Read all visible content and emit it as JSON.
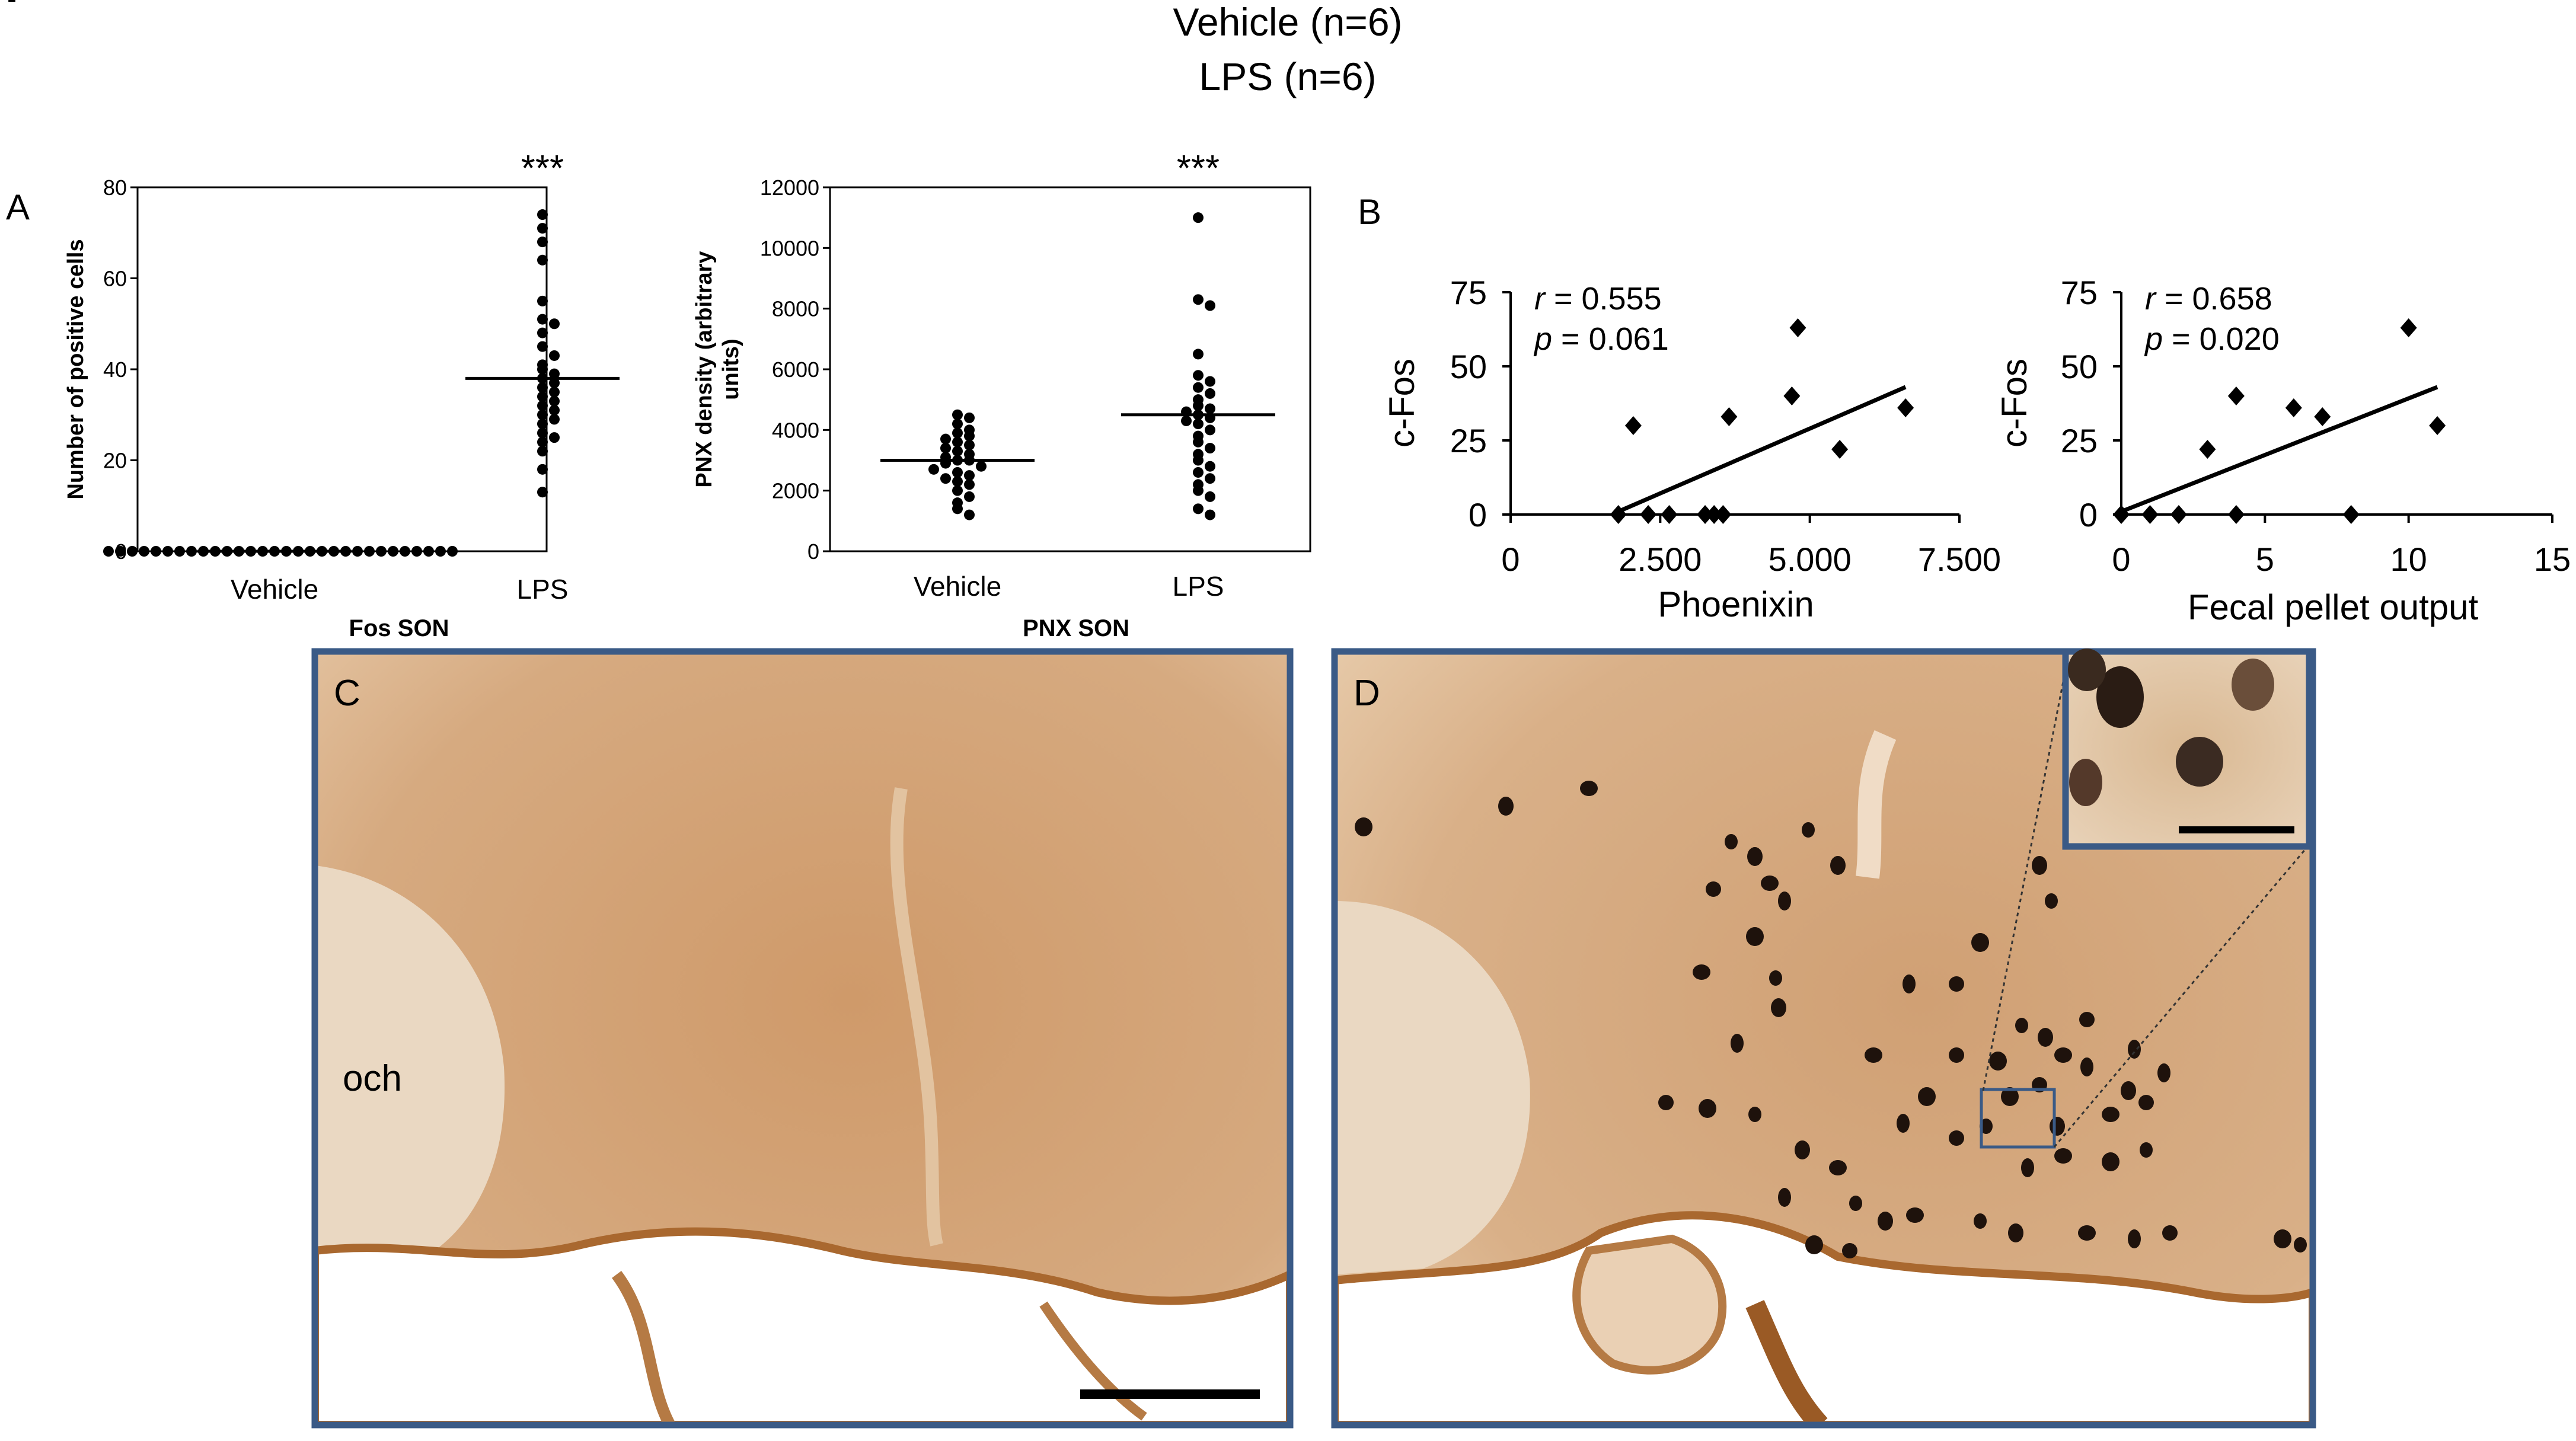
{
  "header": {
    "line1": "Vehicle (n=6)",
    "line2": "LPS (n=6)",
    "corner_mark": "-"
  },
  "panels": {
    "a": "A",
    "b": "B",
    "c": "C",
    "d": "D",
    "och_label": "och"
  },
  "chart_data": [
    {
      "id": "fos-son",
      "type": "scatter",
      "title": "Fos SON",
      "ylabel": "Number of positive cells",
      "xlabel": "",
      "categories": [
        "Vehicle",
        "LPS"
      ],
      "ylim": [
        0,
        80
      ],
      "yticks": [
        0,
        20,
        40,
        60,
        80
      ],
      "ytick_labels": [
        "0",
        "20",
        "40",
        "60",
        "80"
      ],
      "significance": "***",
      "series": [
        {
          "category": "Vehicle",
          "mean": 0,
          "values": [
            0,
            0,
            0,
            0,
            0,
            0,
            0,
            0,
            0,
            0,
            0,
            0,
            0,
            0,
            0,
            0,
            0,
            0,
            0,
            0,
            0,
            0,
            0,
            0,
            0,
            0,
            0,
            0,
            0,
            0
          ]
        },
        {
          "category": "LPS",
          "mean": 38,
          "values": [
            74,
            71,
            68,
            64,
            55,
            51,
            50,
            48,
            45,
            43,
            41,
            40,
            39,
            38,
            37,
            36,
            35,
            34,
            33,
            32,
            31,
            30,
            29,
            28,
            26,
            25,
            24,
            22,
            18,
            13
          ]
        }
      ]
    },
    {
      "id": "pnx-son",
      "type": "scatter",
      "title": "PNX SON",
      "ylabel": "PNX density (arbitrary units)",
      "xlabel": "",
      "categories": [
        "Vehicle",
        "LPS"
      ],
      "ylim": [
        0,
        12000
      ],
      "yticks": [
        0,
        2000,
        4000,
        6000,
        8000,
        10000,
        12000
      ],
      "ytick_labels": [
        "0",
        "2000",
        "4000",
        "6000",
        "8000",
        "10000",
        "12000"
      ],
      "significance": "***",
      "series": [
        {
          "category": "Vehicle",
          "mean": 3000,
          "values": [
            4500,
            4400,
            4200,
            4000,
            3900,
            3800,
            3700,
            3600,
            3500,
            3400,
            3300,
            3200,
            3100,
            3000,
            3000,
            2900,
            2800,
            2700,
            2600,
            2500,
            2400,
            2300,
            2200,
            2000,
            1800,
            1600,
            1400,
            1200
          ]
        },
        {
          "category": "LPS",
          "mean": 4500,
          "values": [
            11000,
            8300,
            8100,
            6500,
            5800,
            5600,
            5400,
            5200,
            5000,
            4800,
            4700,
            4600,
            4500,
            4400,
            4300,
            4200,
            4000,
            3800,
            3600,
            3400,
            3200,
            3000,
            2800,
            2600,
            2400,
            2200,
            2000,
            1800,
            1400,
            1200
          ]
        }
      ]
    },
    {
      "id": "cfos-phoenixin",
      "type": "scatter",
      "xlabel": "Phoenixin",
      "ylabel": "c-Fos",
      "xlim": [
        0,
        7500
      ],
      "ylim": [
        0,
        75
      ],
      "xticks": [
        0,
        2500,
        5000,
        7500
      ],
      "xtick_labels": [
        "0",
        "2.500",
        "5.000",
        "7.500"
      ],
      "yticks": [
        0,
        25,
        50,
        75
      ],
      "ytick_labels": [
        "0",
        "25",
        "50",
        "75"
      ],
      "annotations": {
        "r_symbol": "r",
        "r_value": " = 0.555",
        "p_symbol": "p",
        "p_value": " = 0.061"
      },
      "points": [
        {
          "x": 1800,
          "y": 0
        },
        {
          "x": 2050,
          "y": 30
        },
        {
          "x": 2300,
          "y": 0
        },
        {
          "x": 2650,
          "y": 0
        },
        {
          "x": 3250,
          "y": 0
        },
        {
          "x": 3400,
          "y": 0
        },
        {
          "x": 3550,
          "y": 0
        },
        {
          "x": 3650,
          "y": 33
        },
        {
          "x": 4700,
          "y": 40
        },
        {
          "x": 4800,
          "y": 63
        },
        {
          "x": 5500,
          "y": 22
        },
        {
          "x": 6600,
          "y": 36
        }
      ],
      "trendline": {
        "x": [
          1800,
          6600
        ],
        "y": [
          1,
          43
        ]
      }
    },
    {
      "id": "cfos-fecal",
      "type": "scatter",
      "xlabel": "Fecal pellet output",
      "ylabel": "c-Fos",
      "xlim": [
        0,
        15
      ],
      "ylim": [
        0,
        75
      ],
      "xticks": [
        0,
        5,
        10,
        15
      ],
      "xtick_labels": [
        "0",
        "5",
        "10",
        "15"
      ],
      "yticks": [
        0,
        25,
        50,
        75
      ],
      "ytick_labels": [
        "0",
        "25",
        "50",
        "75"
      ],
      "annotations": {
        "r_symbol": "r",
        "r_value": " = 0.658",
        "p_symbol": "p",
        "p_value": " = 0.020"
      },
      "points": [
        {
          "x": 0,
          "y": 0
        },
        {
          "x": 1,
          "y": 0
        },
        {
          "x": 2,
          "y": 0
        },
        {
          "x": 3,
          "y": 22
        },
        {
          "x": 4,
          "y": 40
        },
        {
          "x": 4,
          "y": 0
        },
        {
          "x": 6,
          "y": 36
        },
        {
          "x": 7,
          "y": 33
        },
        {
          "x": 8,
          "y": 0
        },
        {
          "x": 10,
          "y": 63
        },
        {
          "x": 11,
          "y": 30
        }
      ],
      "trendline": {
        "x": [
          0,
          11
        ],
        "y": [
          1,
          43
        ]
      }
    }
  ],
  "colors": {
    "tissue": "#c8956a",
    "tissue_light": "#e3c7a8",
    "frame": "#3a5a86",
    "stain": "#1e120c"
  }
}
